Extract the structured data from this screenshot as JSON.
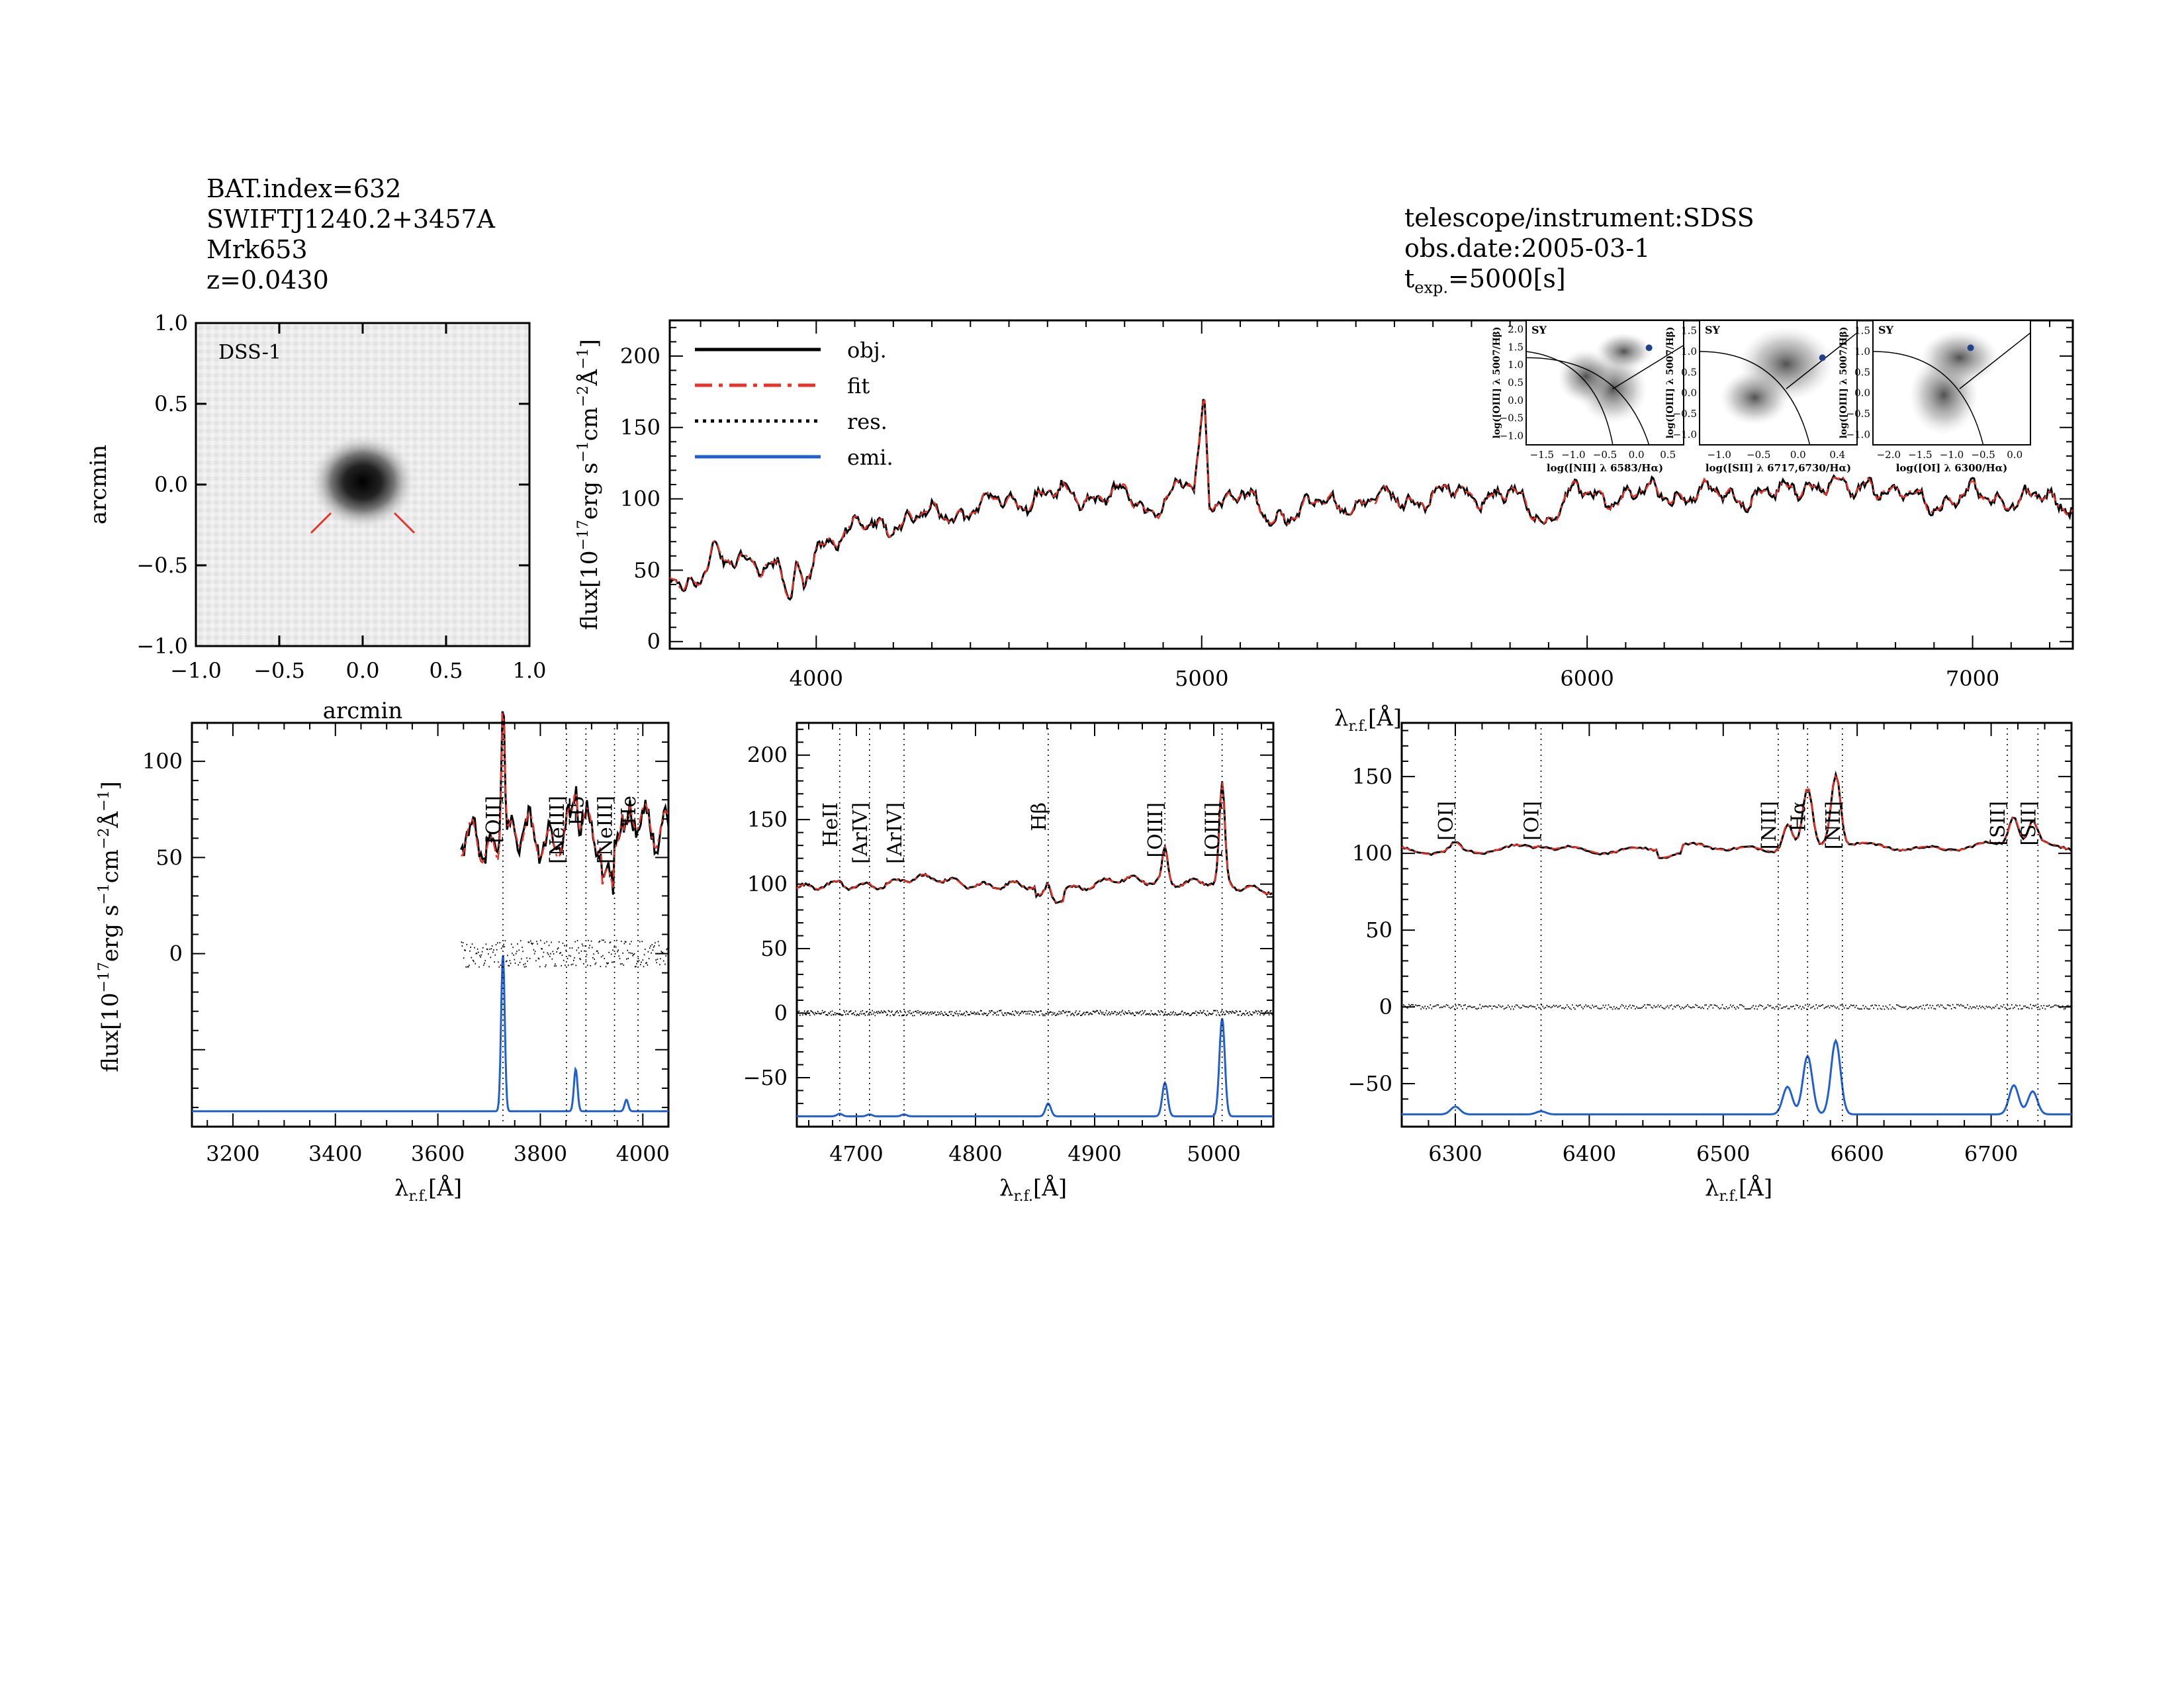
{
  "header": {
    "bat_index": "BAT.index=632",
    "swift_name": "SWIFTJ1240.2+3457A",
    "counterpart": "Mrk653",
    "redshift": "z=0.0430",
    "telescope": "telescope/instrument:SDSS",
    "obs_date": "obs.date:2005-03-1",
    "texp_prefix": "t",
    "texp_sub": "exp.",
    "texp_value": "=5000[s]"
  },
  "colors": {
    "obj": "#000000",
    "fit": "#e8332a",
    "res": "#000000",
    "emi": "#1f5fd1",
    "red_label": "#e8332a"
  },
  "chart_data": [
    {
      "id": "image",
      "type": "heatmap",
      "label": "DSS-1",
      "xlabel": "arcmin",
      "ylabel": "arcmin",
      "xlim": [
        -1.0,
        1.0
      ],
      "ylim": [
        -1.0,
        1.0
      ],
      "xticks": [
        "−1.0",
        "−0.5",
        "0.0",
        "0.5",
        "1.0"
      ],
      "yticks": [
        "−1.0",
        "−0.5",
        "0.0",
        "0.5",
        "1.0"
      ],
      "source_center": [
        0.0,
        0.0
      ]
    },
    {
      "id": "full",
      "type": "line",
      "xlim": [
        3620,
        7260
      ],
      "ylim": [
        -5,
        225
      ],
      "xticks": [
        "4000",
        "5000",
        "6000",
        "7000"
      ],
      "yticks": [
        "0",
        "50",
        "100",
        "150",
        "200"
      ],
      "xlabel_main": "λ",
      "xlabel_sub": "r.f.",
      "xlabel_unit": "[Å]",
      "ylabel_main": "flux[10",
      "ylabel_exp": "−17",
      "ylabel_rest": "erg  s",
      "ylabel_rest2": "cm",
      "ylabel_rest3": "Å",
      "legend": [
        "obj.",
        "fit",
        "res.",
        "emi."
      ],
      "series_anchors": {
        "x": [
          3620,
          3700,
          3730,
          3760,
          3820,
          3900,
          3934,
          3950,
          3968,
          4000,
          4100,
          4200,
          4300,
          4400,
          4500,
          4600,
          4700,
          4800,
          4860,
          4900,
          4959,
          4980,
          5007,
          5020,
          5100,
          5175,
          5200,
          5300,
          5400,
          5500,
          5600,
          5700,
          5800,
          5893,
          5950,
          6050,
          6200,
          6300,
          6500,
          6563,
          6600,
          6700,
          6730,
          6800,
          6900,
          7000,
          7100,
          7260
        ],
        "y": [
          40,
          45,
          70,
          50,
          58,
          55,
          25,
          50,
          32,
          70,
          78,
          84,
          88,
          93,
          99,
          102,
          103,
          102,
          92,
          100,
          110,
          100,
          172,
          100,
          103,
          85,
          90,
          95,
          98,
          99,
          102,
          104,
          102,
          85,
          103,
          102,
          104,
          103,
          102,
          112,
          110,
          105,
          115,
          102,
          98,
          102,
          100,
          98
        ]
      }
    },
    {
      "id": "panel1",
      "type": "line",
      "xlim": [
        3120,
        4050
      ],
      "ylim": [
        -90,
        120
      ],
      "xticks": [
        "3200",
        "3400",
        "3600",
        "3800",
        "4000"
      ],
      "yticks": [
        "0",
        "50",
        "100"
      ],
      "data_start": 3645,
      "lines": [
        {
          "label": "[OII]",
          "x": 3727,
          "color": "black"
        },
        {
          "label": "[NeIII]",
          "x": 3869,
          "color": "black"
        },
        {
          "label": "H5",
          "x": 3889,
          "color": "red"
        },
        {
          "label": "[NeIII]",
          "x": 3968,
          "color": "red"
        },
        {
          "label": "He",
          "x": 3970,
          "color": "red"
        }
      ],
      "emission_peaks": [
        {
          "x": 3727,
          "height": 82
        },
        {
          "x": 3869,
          "height": 22
        },
        {
          "x": 3968,
          "height": 6
        }
      ]
    },
    {
      "id": "panel2",
      "type": "line",
      "xlim": [
        4650,
        5050
      ],
      "ylim": [
        -88,
        225
      ],
      "xticks": [
        "4700",
        "4800",
        "4900",
        "5000"
      ],
      "yticks": [
        "−50",
        "0",
        "50",
        "100",
        "150",
        "200"
      ],
      "lines": [
        {
          "label": "HeII",
          "x": 4686,
          "color": "red"
        },
        {
          "label": "[ArIV]",
          "x": 4711,
          "color": "red"
        },
        {
          "label": "[ArIV]",
          "x": 4740,
          "color": "red"
        },
        {
          "label": "Hβ",
          "x": 4861,
          "color": "black"
        },
        {
          "label": "[OIII]",
          "x": 4959,
          "color": "black"
        },
        {
          "label": "[OIII]",
          "x": 5007,
          "color": "black"
        }
      ],
      "emission_peaks": [
        {
          "x": 4686,
          "height": 2
        },
        {
          "x": 4711,
          "height": 1.5
        },
        {
          "x": 4740,
          "height": 1.5
        },
        {
          "x": 4861,
          "height": 10
        },
        {
          "x": 4959,
          "height": 26
        },
        {
          "x": 5007,
          "height": 76
        }
      ]
    },
    {
      "id": "panel3",
      "type": "line",
      "xlim": [
        6260,
        6760
      ],
      "ylim": [
        -78,
        185
      ],
      "xticks": [
        "6300",
        "6400",
        "6500",
        "6600",
        "6700"
      ],
      "yticks": [
        "−50",
        "0",
        "50",
        "100",
        "150"
      ],
      "lines": [
        {
          "label": "[OI]",
          "x": 6300,
          "color": "black"
        },
        {
          "label": "[OI]",
          "x": 6364,
          "color": "red"
        },
        {
          "label": "[NII]",
          "x": 6548,
          "color": "black"
        },
        {
          "label": "Hα",
          "x": 6563,
          "color": "black"
        },
        {
          "label": "[NII]",
          "x": 6584,
          "color": "black"
        },
        {
          "label": "[SII]",
          "x": 6717,
          "color": "black"
        },
        {
          "label": "[SII]",
          "x": 6731,
          "color": "black"
        }
      ],
      "emission_peaks": [
        {
          "x": 6300,
          "height": 5
        },
        {
          "x": 6364,
          "height": 2
        },
        {
          "x": 6548,
          "height": 18
        },
        {
          "x": 6563,
          "height": 38
        },
        {
          "x": 6584,
          "height": 48
        },
        {
          "x": 6717,
          "height": 19
        },
        {
          "x": 6731,
          "height": 15
        }
      ]
    },
    {
      "id": "bpt",
      "type": "scatter",
      "tag": "SY",
      "panels": [
        {
          "xlabel": "log([NII] λ 6583/Hα)",
          "ylabel": "log([OIII] λ 5007/Hβ)",
          "xticks": [
            "−1.5",
            "−1.0",
            "−0.5",
            "0.0",
            "0.5"
          ],
          "yticks": [
            "−1.0",
            "−0.5",
            "0.0",
            "0.5",
            "1.0",
            "1.5",
            "2.0"
          ]
        },
        {
          "xlabel": "log([SII] λ 6717,6730/Hα)",
          "ylabel": "log([OIII] λ 5007/Hβ)",
          "xticks": [
            "−1.0",
            "−0.5",
            "0.0",
            "0.4"
          ],
          "yticks": [
            "−1.0",
            "−0.5",
            "0.0",
            "0.5",
            "1.0",
            "1.5"
          ]
        },
        {
          "xlabel": "log([OI] λ 6300/Hα)",
          "ylabel": "log([OIII] λ 5007/Hβ)",
          "xticks": [
            "−2.0",
            "−1.5",
            "−1.0",
            "−0.5",
            "0.0"
          ],
          "yticks": [
            "−1.0",
            "−0.5",
            "0.0",
            "0.5",
            "1.0",
            "1.5"
          ]
        }
      ]
    }
  ]
}
